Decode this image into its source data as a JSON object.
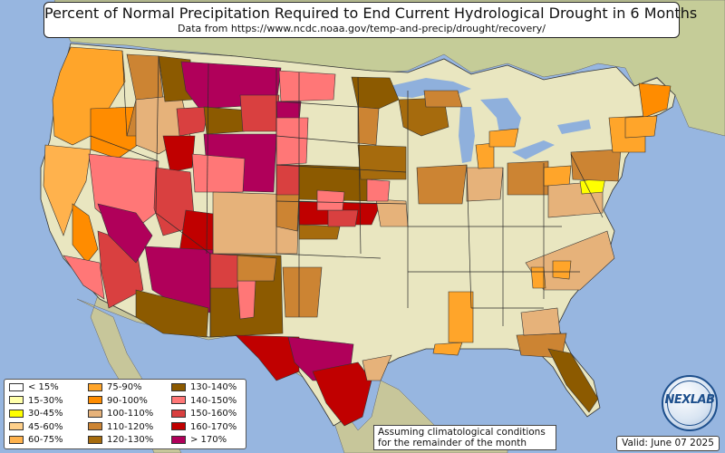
{
  "header": {
    "title": "Percent of Normal Precipitation Required to End Current Hydrological Drought in 6 Months",
    "subtitle": "Data from https://www.ncdc.noaa.gov/temp-and-precip/drought/recovery/"
  },
  "legend": {
    "items": [
      {
        "label": "< 15%",
        "color": "#ffffff"
      },
      {
        "label": "15-30%",
        "color": "#ffffaa"
      },
      {
        "label": "30-45%",
        "color": "#ffff00"
      },
      {
        "label": "45-60%",
        "color": "#ffd08a"
      },
      {
        "label": "60-75%",
        "color": "#ffb24d"
      },
      {
        "label": "75-90%",
        "color": "#ffa52a"
      },
      {
        "label": "90-100%",
        "color": "#ff8c00"
      },
      {
        "label": "100-110%",
        "color": "#e6b27a"
      },
      {
        "label": "110-120%",
        "color": "#cc8433"
      },
      {
        "label": "120-130%",
        "color": "#a66b0d"
      },
      {
        "label": "130-140%",
        "color": "#8c5a00"
      },
      {
        "label": "140-150%",
        "color": "#ff7777"
      },
      {
        "label": "150-160%",
        "color": "#d94040"
      },
      {
        "label": "160-170%",
        "color": "#c00000"
      },
      {
        "label": "> 170%",
        "color": "#b0005a"
      }
    ]
  },
  "notes": {
    "assumption": "Assuming climatological conditions for the remainder of the month",
    "valid": "Valid: June 07 2025"
  },
  "logo": {
    "text": "NEXLAB"
  },
  "colors": {
    "ocean": "#97b6e0",
    "land": "#e6e4bc",
    "mexico_canada": "#c9cf9a",
    "lakes": "#8fb0dc",
    "state_border": "#222222"
  }
}
